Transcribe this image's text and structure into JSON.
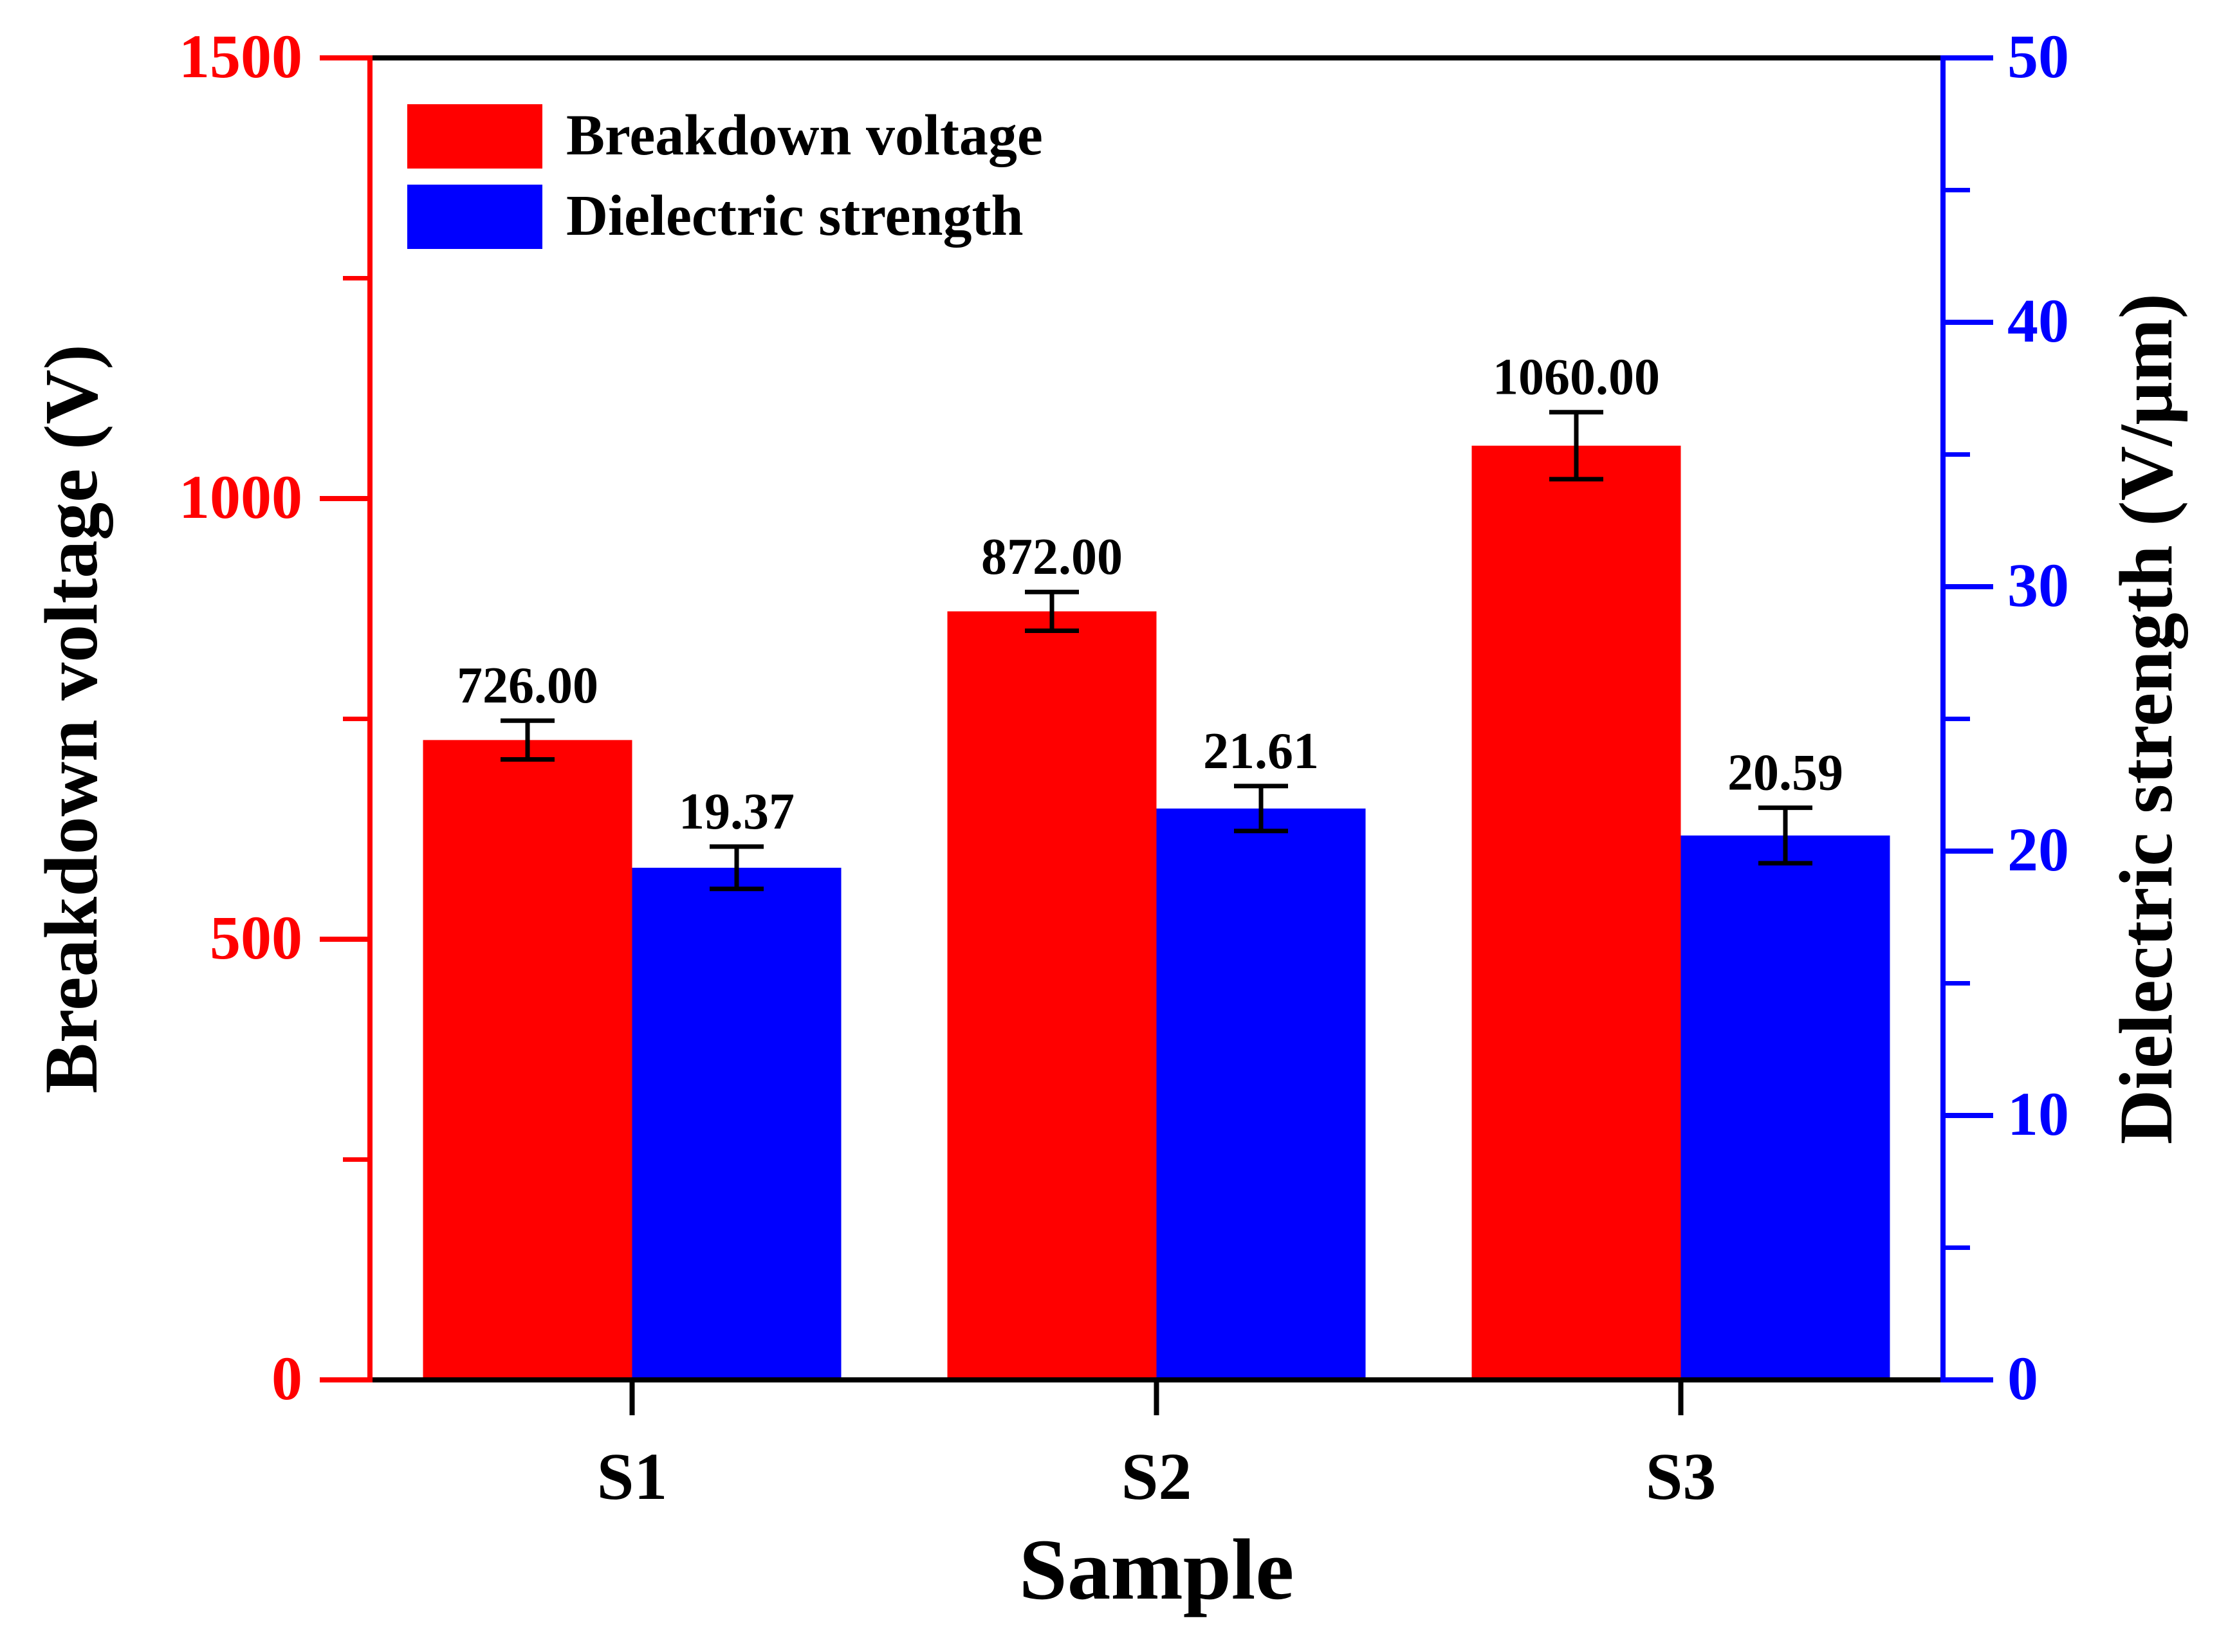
{
  "chart_data": {
    "type": "bar",
    "categories": [
      "S1",
      "S2",
      "S3"
    ],
    "xlabel": "Sample",
    "series": [
      {
        "name": "Breakdown voltage",
        "axis": "left",
        "color": "#ff0000",
        "values": [
          726.0,
          872.0,
          1060.0
        ],
        "errors": [
          22,
          22,
          38
        ],
        "labels": [
          "726.00",
          "872.00",
          "1060.00"
        ]
      },
      {
        "name": "Dielectric strength",
        "axis": "right",
        "color": "#0000ff",
        "values": [
          19.37,
          21.61,
          20.59
        ],
        "errors": [
          0.8,
          0.85,
          1.05
        ],
        "labels": [
          "19.37",
          "21.61",
          "20.59"
        ]
      }
    ],
    "left_axis": {
      "label": "Breakdown voltage (V)",
      "color": "#ff0000",
      "ylim": [
        0,
        1500
      ],
      "ticks": [
        0,
        500,
        1000,
        1500
      ],
      "minor_ticks": [
        250,
        750,
        1250
      ]
    },
    "right_axis": {
      "label": "Dielectric strength (V/μm)",
      "color": "#0000ff",
      "ylim": [
        0,
        50
      ],
      "ticks": [
        0,
        10,
        20,
        30,
        40,
        50
      ],
      "minor_ticks": [
        5,
        15,
        25,
        35,
        45
      ]
    },
    "legend": {
      "position": "top-left",
      "entries": [
        "Breakdown voltage",
        "Dielectric strength"
      ]
    }
  }
}
